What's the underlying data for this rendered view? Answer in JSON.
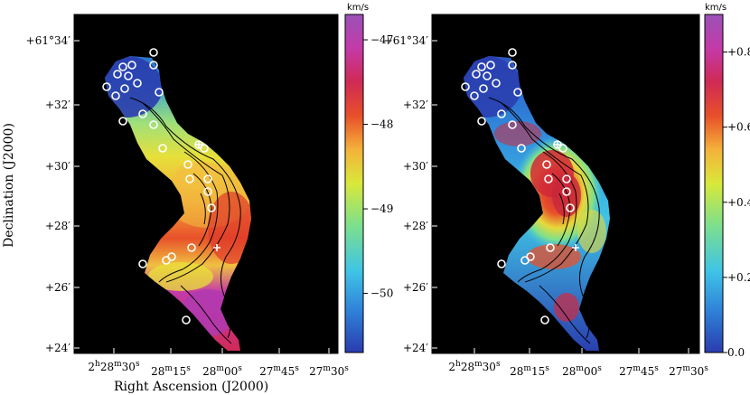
{
  "figure": {
    "y_axis_title": "Declination (J2000)",
    "x_axis_title": "Right Ascension (J2000)",
    "dec_ticks": [
      "+61°34′",
      "+32′",
      "+30′",
      "+28′",
      "+26′",
      "+24′"
    ],
    "ra_ticks": [
      {
        "h": "2",
        "hu": "h",
        "m": "28",
        "mu": "m",
        "s": "30",
        "su": "s"
      },
      {
        "h": "",
        "hu": "",
        "m": "28",
        "mu": "m",
        "s": "15",
        "su": "s"
      },
      {
        "h": "",
        "hu": "",
        "m": "28",
        "mu": "m",
        "s": "00",
        "su": "s"
      },
      {
        "h": "",
        "hu": "",
        "m": "27",
        "mu": "m",
        "s": "45",
        "su": "s"
      },
      {
        "h": "",
        "hu": "",
        "m": "27",
        "mu": "m",
        "s": "30",
        "su": "s"
      }
    ]
  },
  "panels": [
    {
      "id": "velocity",
      "colorbar": {
        "unit": "km/s",
        "labels": [
          "−47",
          "−48",
          "−49",
          "−50"
        ],
        "label_values": [
          -47,
          -48,
          -49,
          -50
        ],
        "range": [
          -50.7,
          -46.7
        ],
        "colormap": "rainbow-blue-to-purple"
      }
    },
    {
      "id": "dispersion",
      "colorbar": {
        "unit": "km/s",
        "labels": [
          "+0.8",
          "+0.6",
          "+0.4",
          "+0.2",
          "0.0"
        ],
        "label_values": [
          0.8,
          0.6,
          0.4,
          0.2,
          0.0
        ],
        "range": [
          0.0,
          0.9
        ],
        "colormap": "rainbow-blue-to-purple"
      }
    }
  ],
  "colors": {
    "background": "#000000",
    "stops": [
      "#2a3cae",
      "#2f7fd8",
      "#3fc4e6",
      "#7fe08a",
      "#d9e83a",
      "#f4b23a",
      "#e8502a",
      "#d02a55",
      "#c43aa8",
      "#9a52b8"
    ]
  }
}
